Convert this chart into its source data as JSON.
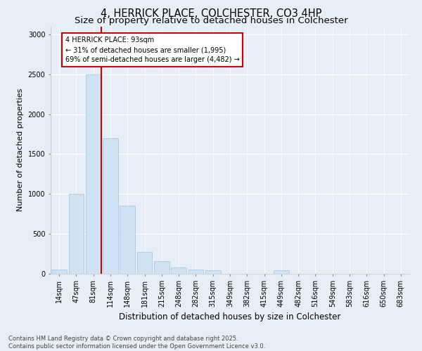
{
  "title": "4, HERRICK PLACE, COLCHESTER, CO3 4HP",
  "subtitle": "Size of property relative to detached houses in Colchester",
  "xlabel": "Distribution of detached houses by size in Colchester",
  "ylabel": "Number of detached properties",
  "bar_labels": [
    "14sqm",
    "47sqm",
    "81sqm",
    "114sqm",
    "148sqm",
    "181sqm",
    "215sqm",
    "248sqm",
    "282sqm",
    "315sqm",
    "349sqm",
    "382sqm",
    "415sqm",
    "449sqm",
    "482sqm",
    "516sqm",
    "549sqm",
    "583sqm",
    "616sqm",
    "650sqm",
    "683sqm"
  ],
  "bar_values": [
    55,
    1000,
    2500,
    1700,
    850,
    270,
    160,
    75,
    55,
    40,
    0,
    0,
    0,
    40,
    0,
    0,
    0,
    0,
    0,
    0,
    0
  ],
  "bar_color": "#cfe2f3",
  "bar_edge_color": "#9ec5e0",
  "property_line_color": "#cc0000",
  "annotation_text": "4 HERRICK PLACE: 93sqm\n← 31% of detached houses are smaller (1,995)\n69% of semi-detached houses are larger (4,482) →",
  "annotation_box_color": "#cc0000",
  "ylim": [
    0,
    3100
  ],
  "yticks": [
    0,
    500,
    1000,
    1500,
    2000,
    2500,
    3000
  ],
  "background_color": "#e8eef8",
  "plot_bg_color": "#e8eef8",
  "footer_text": "Contains HM Land Registry data © Crown copyright and database right 2025.\nContains public sector information licensed under the Open Government Licence v3.0.",
  "title_fontsize": 10.5,
  "subtitle_fontsize": 9.5,
  "xlabel_fontsize": 8.5,
  "ylabel_fontsize": 8,
  "tick_fontsize": 7,
  "annotation_fontsize": 7,
  "footer_fontsize": 6
}
